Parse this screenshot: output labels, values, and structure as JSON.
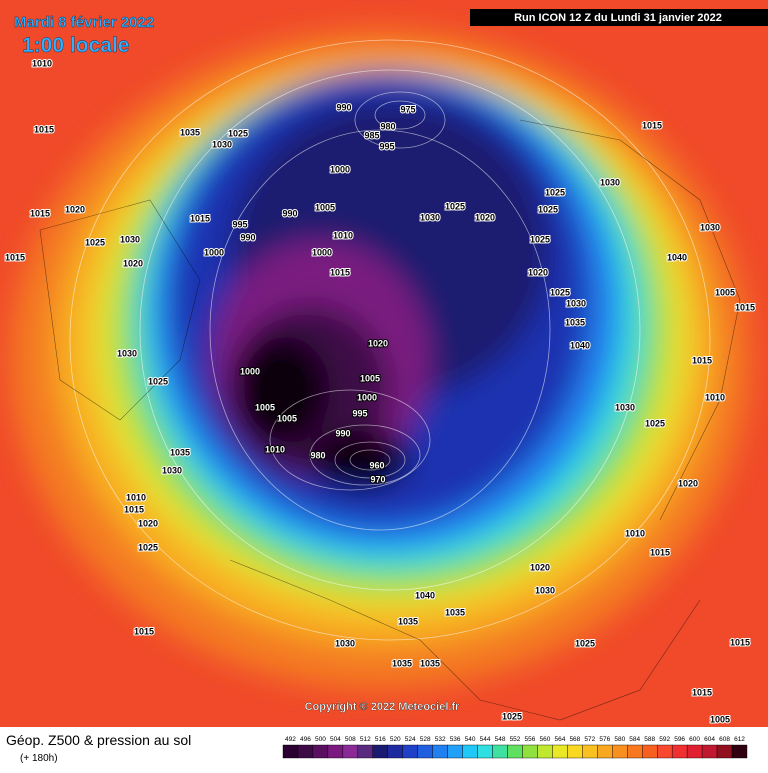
{
  "header": {
    "title": "Mardi 8 février 2022",
    "time": "1:00 locale",
    "run": "Run ICON 12 Z du Lundi 31 janvier 2022"
  },
  "footer": {
    "caption": "Géop. Z500 & pression au sol",
    "range": "(+ 180h)",
    "copyright": "Copyright © 2022 Meteociel.fr"
  },
  "legend": {
    "labels": [
      492,
      496,
      500,
      504,
      508,
      512,
      516,
      520,
      524,
      528,
      532,
      536,
      540,
      544,
      548,
      552,
      556,
      560,
      564,
      568,
      572,
      576,
      580,
      584,
      588,
      592,
      596,
      600,
      604,
      608,
      612
    ],
    "colors": [
      "#2a0030",
      "#3d0a46",
      "#5a1060",
      "#7a1a80",
      "#8a2a96",
      "#5a2a80",
      "#1a1a70",
      "#1e2aa0",
      "#2040c8",
      "#2060e0",
      "#2080f0",
      "#20a0f8",
      "#20c8f8",
      "#30e0e0",
      "#40e0a0",
      "#60e060",
      "#90e040",
      "#c0e830",
      "#e8e828",
      "#f8d820",
      "#f8c020",
      "#f8a820",
      "#f89020",
      "#f87820",
      "#f86020",
      "#f84830",
      "#f03030",
      "#e02030",
      "#c01830",
      "#901020",
      "#300010"
    ]
  },
  "isobar_labels": [
    "1010",
    "1015",
    "1035",
    "1025",
    "1030",
    "1015",
    "1020",
    "1025",
    "1030",
    "1015",
    "1020",
    "1015",
    "990",
    "995",
    "990",
    "1005",
    "1010",
    "1000",
    "1000",
    "1015",
    "990",
    "975",
    "980",
    "985",
    "995",
    "1000",
    "1025",
    "1030",
    "1020",
    "1025",
    "1030",
    "1015",
    "1025",
    "1025",
    "1020",
    "1025",
    "1030",
    "1035",
    "1040",
    "1030",
    "1040",
    "1005",
    "1015",
    "1020",
    "1000",
    "1005",
    "1000",
    "995",
    "1005",
    "1005",
    "990",
    "980",
    "1010",
    "960",
    "970",
    "1030",
    "1025",
    "1035",
    "1030",
    "1010",
    "1015",
    "1020",
    "1025",
    "1015",
    "1010",
    "1015",
    "1020",
    "1025",
    "1010",
    "1015",
    "1030",
    "1040",
    "1035",
    "1035",
    "1030",
    "1035",
    "1035",
    "1020",
    "1030",
    "1025",
    "1015",
    "1015",
    "1025",
    "1005"
  ]
}
